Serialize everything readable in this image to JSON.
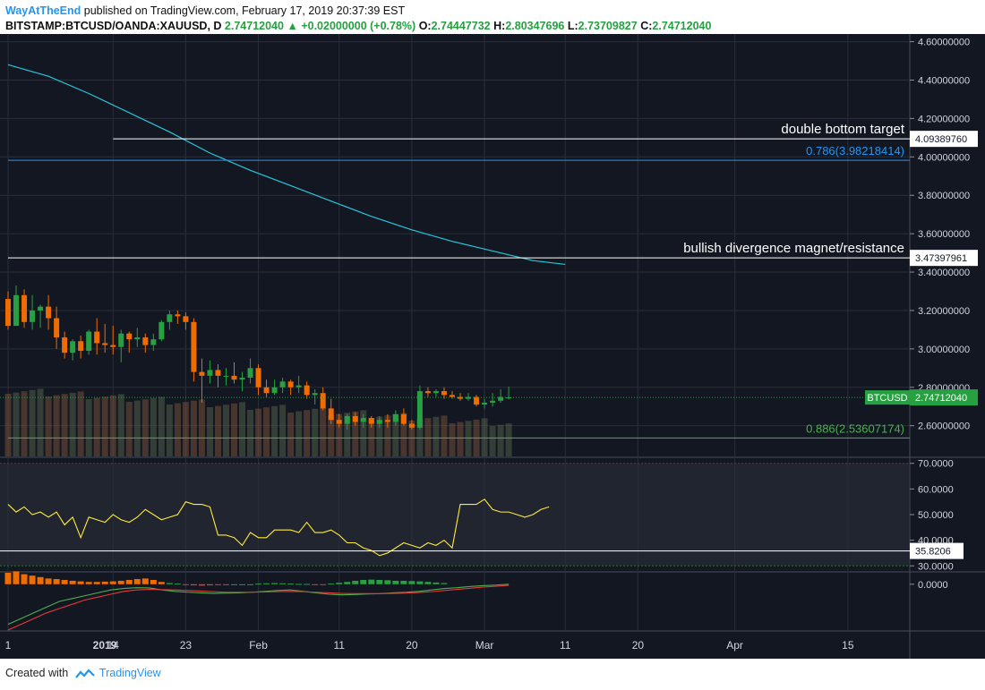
{
  "header": {
    "author": "WayAtTheEnd",
    "published_text": "published on TradingView.com, February 17, 2019 20:37:39 EST",
    "symbol": "BITSTAMP:BTCUSD/OANDA:XAUUSD, D",
    "last": "2.74712040",
    "change": "+0.02000000 (+0.78%)",
    "o_label": "O:",
    "o": "2.74447732",
    "h_label": "H:",
    "h": "2.80347696",
    "l_label": "L:",
    "l": "2.73709827",
    "c_label": "C:",
    "c": "2.74712040",
    "up_arrow_icon": "triangle-up-icon"
  },
  "footer": {
    "created_with": "Created with",
    "brand": "TradingView",
    "logo_icon": "tradingview-logo-icon"
  },
  "colors": {
    "background": "#131722",
    "grid": "#2a2e39",
    "up": "#26a041",
    "down": "#ef6c00",
    "ma": "#26c6da",
    "rsi": "#ffeb3b",
    "macd": "#4caf50",
    "signal": "#e53935",
    "fib_786": "#2196f3",
    "fib_886": "#4caf50"
  },
  "chart_data": [
    {
      "type": "candlestick",
      "name": "price",
      "y_ticks": [
        "4.60000000",
        "4.40000000",
        "4.20000000",
        "4.00000000",
        "3.80000000",
        "3.60000000",
        "3.40000000",
        "3.20000000",
        "3.00000000",
        "2.80000000",
        "2.60000000"
      ],
      "ylim": [
        2.44,
        4.64
      ],
      "x_ticks": [
        "1",
        "14",
        "23",
        "Feb",
        "11",
        "20",
        "Mar",
        "11",
        "20",
        "Apr",
        "15"
      ],
      "x_tick_days": [
        0,
        13,
        22,
        31,
        41,
        50,
        59,
        69,
        78,
        90,
        104
      ],
      "x_tick_date_labels": [
        "2019"
      ],
      "candles": [
        [
          3.26,
          3.3,
          3.1,
          3.12
        ],
        [
          3.12,
          3.33,
          3.12,
          3.28
        ],
        [
          3.28,
          3.31,
          3.11,
          3.14
        ],
        [
          3.14,
          3.28,
          3.1,
          3.2
        ],
        [
          3.2,
          3.23,
          3.11,
          3.22
        ],
        [
          3.22,
          3.28,
          3.1,
          3.16
        ],
        [
          3.16,
          3.22,
          3.0,
          3.06
        ],
        [
          3.06,
          3.09,
          2.95,
          2.98
        ],
        [
          2.98,
          3.05,
          2.94,
          3.04
        ],
        [
          3.04,
          3.07,
          2.95,
          2.99
        ],
        [
          2.99,
          3.1,
          2.97,
          3.09
        ],
        [
          3.09,
          3.16,
          2.97,
          3.03
        ],
        [
          3.03,
          3.13,
          2.98,
          3.02
        ],
        [
          3.02,
          3.12,
          2.97,
          3.01
        ],
        [
          3.01,
          3.1,
          2.93,
          3.08
        ],
        [
          3.08,
          3.09,
          2.98,
          3.05
        ],
        [
          3.05,
          3.11,
          3.01,
          3.06
        ],
        [
          3.06,
          3.08,
          2.98,
          3.02
        ],
        [
          3.02,
          3.08,
          2.99,
          3.05
        ],
        [
          3.05,
          3.15,
          3.04,
          3.14
        ],
        [
          3.14,
          3.2,
          3.1,
          3.18
        ],
        [
          3.18,
          3.2,
          3.13,
          3.17
        ],
        [
          3.17,
          3.19,
          3.1,
          3.14
        ],
        [
          3.14,
          3.16,
          2.83,
          2.88
        ],
        [
          2.88,
          2.95,
          2.72,
          2.86
        ],
        [
          2.86,
          2.94,
          2.82,
          2.89
        ],
        [
          2.89,
          2.92,
          2.8,
          2.86
        ],
        [
          2.86,
          2.9,
          2.81,
          2.86
        ],
        [
          2.86,
          2.93,
          2.82,
          2.84
        ],
        [
          2.84,
          2.88,
          2.78,
          2.85
        ],
        [
          2.85,
          2.95,
          2.82,
          2.9
        ],
        [
          2.9,
          2.92,
          2.76,
          2.8
        ],
        [
          2.8,
          2.84,
          2.75,
          2.77
        ],
        [
          2.77,
          2.84,
          2.76,
          2.8
        ],
        [
          2.8,
          2.85,
          2.77,
          2.83
        ],
        [
          2.83,
          2.84,
          2.76,
          2.8
        ],
        [
          2.8,
          2.86,
          2.77,
          2.81
        ],
        [
          2.81,
          2.83,
          2.74,
          2.76
        ],
        [
          2.76,
          2.79,
          2.71,
          2.77
        ],
        [
          2.77,
          2.8,
          2.68,
          2.69
        ],
        [
          2.69,
          2.74,
          2.61,
          2.63
        ],
        [
          2.63,
          2.66,
          2.59,
          2.61
        ],
        [
          2.61,
          2.66,
          2.58,
          2.65
        ],
        [
          2.65,
          2.67,
          2.6,
          2.62
        ],
        [
          2.62,
          2.66,
          2.59,
          2.64
        ],
        [
          2.64,
          2.65,
          2.59,
          2.61
        ],
        [
          2.61,
          2.65,
          2.59,
          2.63
        ],
        [
          2.63,
          2.66,
          2.59,
          2.62
        ],
        [
          2.62,
          2.68,
          2.6,
          2.66
        ],
        [
          2.66,
          2.69,
          2.6,
          2.61
        ],
        [
          2.61,
          2.63,
          2.58,
          2.59
        ],
        [
          2.59,
          2.81,
          2.58,
          2.78
        ],
        [
          2.78,
          2.8,
          2.75,
          2.77
        ],
        [
          2.77,
          2.79,
          2.75,
          2.78
        ],
        [
          2.78,
          2.8,
          2.74,
          2.76
        ],
        [
          2.76,
          2.78,
          2.74,
          2.75
        ],
        [
          2.75,
          2.77,
          2.73,
          2.74
        ],
        [
          2.74,
          2.77,
          2.73,
          2.75
        ],
        [
          2.75,
          2.76,
          2.7,
          2.71
        ],
        [
          2.71,
          2.74,
          2.69,
          2.72
        ],
        [
          2.72,
          2.77,
          2.7,
          2.73
        ],
        [
          2.73,
          2.79,
          2.72,
          2.75
        ],
        [
          2.7445,
          2.8035,
          2.7371,
          2.7471
        ]
      ],
      "moving_average": [
        [
          0,
          4.48
        ],
        [
          5,
          4.42
        ],
        [
          10,
          4.33
        ],
        [
          15,
          4.23
        ],
        [
          20,
          4.13
        ],
        [
          25,
          4.02
        ],
        [
          30,
          3.93
        ],
        [
          35,
          3.85
        ],
        [
          40,
          3.77
        ],
        [
          45,
          3.69
        ],
        [
          50,
          3.62
        ],
        [
          55,
          3.56
        ],
        [
          60,
          3.51
        ],
        [
          65,
          3.46
        ],
        [
          69,
          3.44
        ]
      ],
      "lines": [
        {
          "label": "double bottom target",
          "value": 4.0938976,
          "value_text": "4.09389760",
          "color": "#ffffff",
          "from_day": 13
        },
        {
          "label": "bullish divergence magnet/resistance",
          "value": 3.47397961,
          "value_text": "3.47397961",
          "color": "#ffffff",
          "from_day": 0
        },
        {
          "label": "0.786(3.98218414)",
          "value": 3.98218414,
          "color": "#2196f3",
          "from_day": 0
        },
        {
          "label": "0.886(2.53607174)",
          "value": 2.53607174,
          "color": "#4caf50",
          "from_day": 0
        }
      ],
      "current_price": {
        "label": "BTCUSD",
        "value": 2.7471204,
        "value_text": "2.74712040"
      }
    },
    {
      "type": "line",
      "name": "RSI",
      "y_ticks": [
        "70.0000",
        "60.0000",
        "50.0000",
        "40.0000",
        "30.0000"
      ],
      "ylim": [
        28,
        72
      ],
      "band": [
        30,
        70
      ],
      "marker": {
        "value": 35.8206,
        "value_text": "35.8206"
      },
      "values": [
        54,
        51,
        53,
        50,
        51,
        49,
        51,
        46,
        49,
        41,
        49,
        48,
        47,
        50,
        48,
        47,
        49,
        52,
        50,
        48,
        49,
        50,
        55,
        54,
        54,
        53,
        42,
        42,
        41,
        38,
        43,
        41,
        41,
        44,
        44,
        44,
        43,
        47,
        43,
        43,
        44,
        42,
        39,
        39,
        37,
        36,
        34,
        35,
        37,
        39,
        38,
        37,
        39,
        38,
        40,
        37,
        54,
        54,
        54,
        56,
        52,
        51,
        51,
        50,
        49,
        50,
        52,
        53
      ],
      "line_visible": true
    },
    {
      "type": "bar+line",
      "name": "MACD",
      "y_ticks": [
        "0.0000"
      ],
      "ylim": [
        -0.16,
        0.04
      ],
      "histogram": [
        0.04,
        0.045,
        0.035,
        0.03,
        0.025,
        0.02,
        0.018,
        0.015,
        0.012,
        0.01,
        0.008,
        0.008,
        0.009,
        0.01,
        0.012,
        0.015,
        0.018,
        0.02,
        0.015,
        0.008,
        0.004,
        0.002,
        -0.002,
        -0.004,
        -0.005,
        -0.004,
        -0.003,
        -0.002,
        0.0,
        0.0,
        0.0,
        0.002,
        0.003,
        0.004,
        0.003,
        0.002,
        0.001,
        0.001,
        -0.001,
        -0.001,
        0.002,
        0.005,
        0.008,
        0.012,
        0.015,
        0.016,
        0.015,
        0.014,
        0.012,
        0.012,
        0.011,
        0.01,
        0.008,
        0.006,
        0.004
      ],
      "macd": [
        -0.14,
        -0.12,
        -0.1,
        -0.08,
        -0.06,
        -0.05,
        -0.04,
        -0.03,
        -0.02,
        -0.015,
        -0.012,
        -0.013,
        -0.02,
        -0.025,
        -0.028,
        -0.03,
        -0.032,
        -0.031,
        -0.03,
        -0.028,
        -0.025,
        -0.022,
        -0.02,
        -0.025,
        -0.03,
        -0.035,
        -0.037,
        -0.036,
        -0.034,
        -0.033,
        -0.03,
        -0.028,
        -0.025,
        -0.02,
        -0.015,
        -0.012,
        -0.008,
        -0.005,
        -0.003,
        0.0
      ],
      "signal": [
        -0.16,
        -0.14,
        -0.12,
        -0.1,
        -0.085,
        -0.07,
        -0.055,
        -0.045,
        -0.035,
        -0.025,
        -0.02,
        -0.018,
        -0.019,
        -0.02,
        -0.022,
        -0.024,
        -0.026,
        -0.028,
        -0.028,
        -0.028,
        -0.027,
        -0.026,
        -0.025,
        -0.026,
        -0.028,
        -0.03,
        -0.032,
        -0.033,
        -0.033,
        -0.033,
        -0.032,
        -0.031,
        -0.029,
        -0.026,
        -0.022,
        -0.018,
        -0.014,
        -0.01,
        -0.007,
        -0.004
      ]
    }
  ]
}
